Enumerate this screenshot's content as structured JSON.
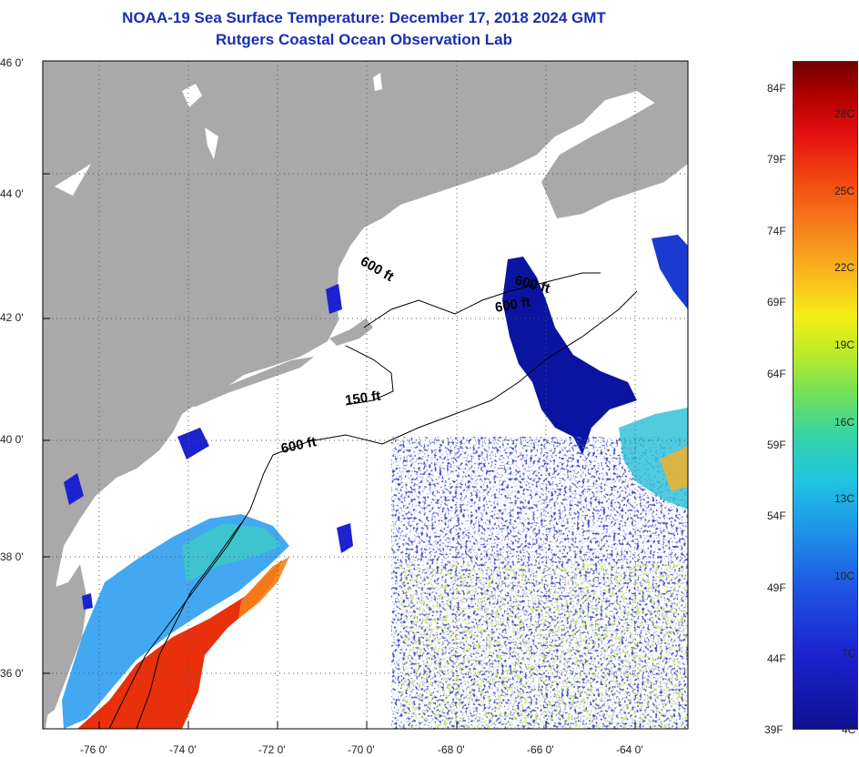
{
  "title": {
    "line1": "NOAA-19 Sea Surface Temperature:  December 17, 2018 2024 GMT",
    "line2": "Rutgers Coastal Ocean Observation Lab"
  },
  "lat_ticks": [
    "46 0'",
    "44 0'",
    "42 0'",
    "40 0'",
    "38 0'",
    "36 0'"
  ],
  "lon_ticks": [
    "-76 0'",
    "-74 0'",
    "-72 0'",
    "-70 0'",
    "-68 0'",
    "-66 0'",
    "-64 0'"
  ],
  "contour_labels": [
    "600 ft",
    "600 ft",
    "600 ft",
    "150 ft",
    "600 ft"
  ],
  "colorbar": {
    "fahrenheit": [
      "84F",
      "79F",
      "74F",
      "69F",
      "64F",
      "59F",
      "54F",
      "49F",
      "44F",
      "39F"
    ],
    "celsius": [
      "28C",
      "25C",
      "22C",
      "19C",
      "16C",
      "13C",
      "10C",
      "7C",
      "4C"
    ]
  },
  "colors": {
    "land": "#a9a9a9",
    "ocean_no_data": "#ffffff",
    "cold": "#0a14a0",
    "warm": "#e8300c",
    "title": "#1a2fb0"
  }
}
